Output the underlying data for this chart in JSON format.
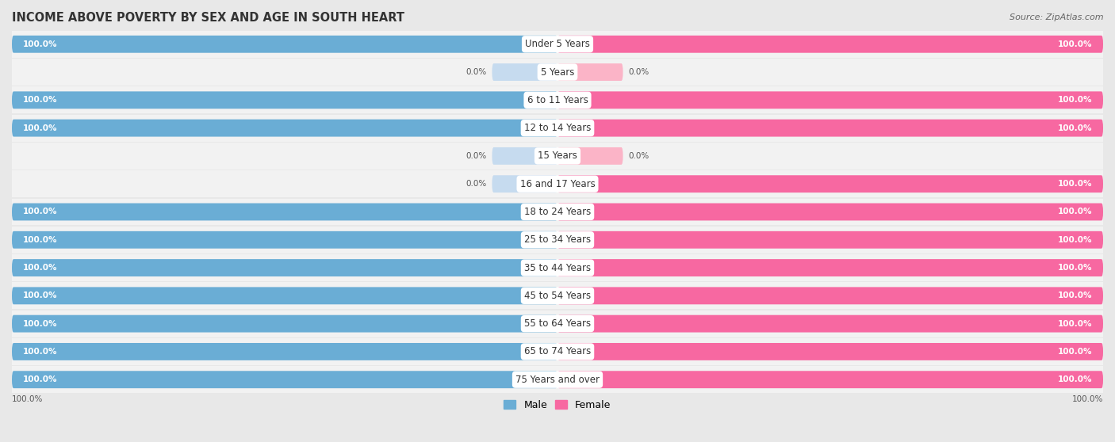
{
  "title": "INCOME ABOVE POVERTY BY SEX AND AGE IN SOUTH HEART",
  "source": "Source: ZipAtlas.com",
  "categories": [
    "Under 5 Years",
    "5 Years",
    "6 to 11 Years",
    "12 to 14 Years",
    "15 Years",
    "16 and 17 Years",
    "18 to 24 Years",
    "25 to 34 Years",
    "35 to 44 Years",
    "45 to 54 Years",
    "55 to 64 Years",
    "65 to 74 Years",
    "75 Years and over"
  ],
  "male_values": [
    100.0,
    0.0,
    100.0,
    100.0,
    0.0,
    0.0,
    100.0,
    100.0,
    100.0,
    100.0,
    100.0,
    100.0,
    100.0
  ],
  "female_values": [
    100.0,
    0.0,
    100.0,
    100.0,
    0.0,
    100.0,
    100.0,
    100.0,
    100.0,
    100.0,
    100.0,
    100.0,
    100.0
  ],
  "male_color": "#6aadd5",
  "female_color": "#f768a1",
  "male_light_color": "#c6dbef",
  "female_light_color": "#fbb4c7",
  "bg_color": "#e8e8e8",
  "row_color": "#f2f2f2",
  "bar_bg_color": "#ffffff",
  "title_color": "#333333",
  "source_color": "#666666",
  "label_color": "#333333",
  "value_color_on_bar": "#ffffff",
  "value_color_off_bar": "#555555",
  "bottom_label_color": "#555555",
  "title_fontsize": 10.5,
  "source_fontsize": 8,
  "label_fontsize": 8.5,
  "value_fontsize": 7.5,
  "legend_fontsize": 9,
  "bar_height": 0.62,
  "small_bar_width": 12,
  "xlim_left": -100,
  "xlim_right": 100
}
